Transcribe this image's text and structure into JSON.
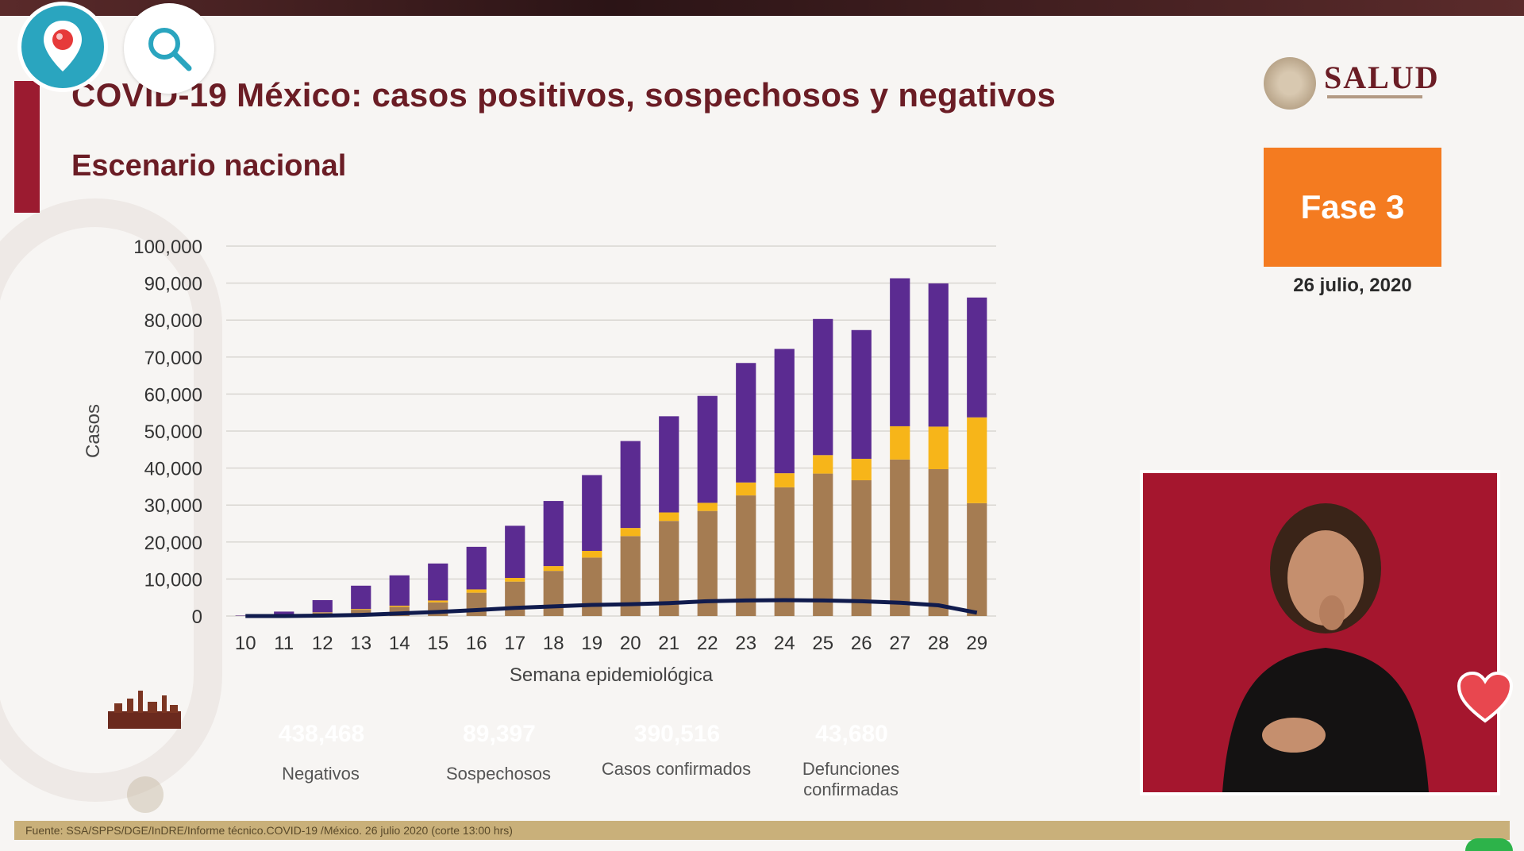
{
  "slide": {
    "title": "COVID-19 México: casos positivos, sospechosos y negativos",
    "subtitle": "Escenario nacional",
    "logo_text": "SALUD",
    "phase_label": "Fase 3",
    "date": "26 julio, 2020",
    "source": "Fuente: SSA/SPPS/DGE/InDRE/Informe técnico.COVID-19 /México. 26 julio 2020 (corte 13:00 hrs)"
  },
  "summary": [
    {
      "value": "438,468",
      "label": "Negativos",
      "color": "#5b2b91"
    },
    {
      "value": "89,397",
      "label": "Sospechosos",
      "color": "#f7b519"
    },
    {
      "value": "390,516",
      "label": "Casos confirmados",
      "color": "#a57c52"
    },
    {
      "value": "43,680",
      "label": "Defunciones confirmadas",
      "color": "#101b4d"
    }
  ],
  "overlay": {
    "pin_icon": "location-pin-icon",
    "search_icon": "search-icon",
    "heart_icon": "heart-icon"
  },
  "chart_data": {
    "type": "bar",
    "stacked": true,
    "xlabel": "Semana epidemiológica",
    "ylabel": "Casos",
    "ylim": [
      0,
      100000
    ],
    "yticks": [
      "0",
      "10,000",
      "20,000",
      "30,000",
      "40,000",
      "50,000",
      "60,000",
      "70,000",
      "80,000",
      "90,000",
      "100,000"
    ],
    "categories": [
      "10",
      "11",
      "12",
      "13",
      "14",
      "15",
      "16",
      "17",
      "18",
      "19",
      "20",
      "21",
      "22",
      "23",
      "24",
      "25",
      "26",
      "27",
      "28",
      "29"
    ],
    "series": [
      {
        "name": "Casos confirmados",
        "color": "#a57c52",
        "values": [
          50,
          300,
          900,
          1700,
          2500,
          3700,
          6300,
          9300,
          12200,
          15800,
          21600,
          25700,
          28400,
          32600,
          34800,
          38500,
          36700,
          42300,
          39700,
          30500
        ]
      },
      {
        "name": "Sospechosos",
        "color": "#f7b519",
        "values": [
          0,
          0,
          100,
          200,
          300,
          500,
          900,
          1000,
          1300,
          1800,
          2200,
          2300,
          2200,
          3500,
          3800,
          5000,
          5800,
          9000,
          11500,
          23200
        ]
      },
      {
        "name": "Negativos",
        "color": "#5b2b91",
        "values": [
          100,
          900,
          3300,
          6300,
          8200,
          10000,
          11500,
          14100,
          17600,
          20500,
          23500,
          26000,
          28900,
          32300,
          33600,
          36800,
          34800,
          40000,
          38700,
          32400
        ]
      },
      {
        "name": "Defunciones confirmadas",
        "color": "#101b4d",
        "type": "line",
        "values": [
          0,
          0,
          100,
          300,
          700,
          1100,
          1600,
          2200,
          2600,
          3000,
          3200,
          3500,
          4000,
          4200,
          4300,
          4200,
          4000,
          3600,
          2900,
          900
        ]
      }
    ]
  }
}
